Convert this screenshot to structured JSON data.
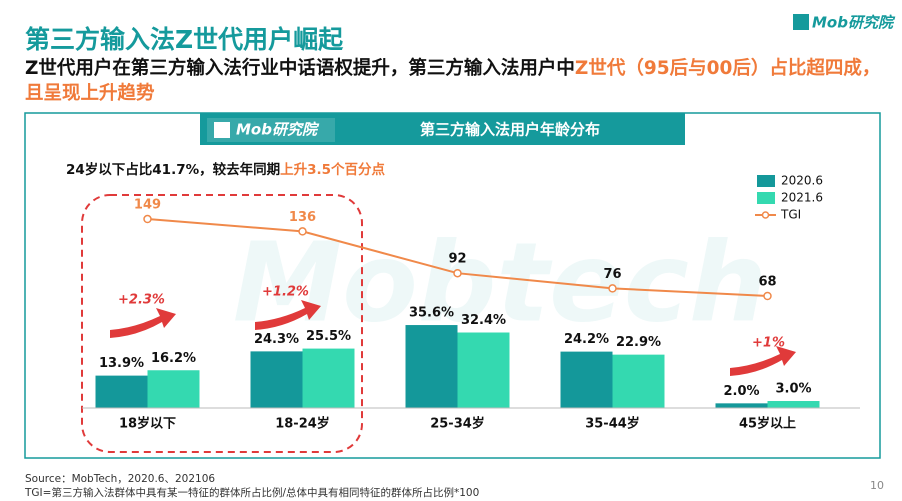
{
  "header": {
    "title": "第三方输入法Z世代用户崛起",
    "subtitle": [
      "Z世代用户在第三方输入法行业中话语权提升，第三方输入法用户中",
      "Z世代（95后与00后）占比超四成，且呈现上升趋势"
    ],
    "logo": "Mob研究院"
  },
  "chart_data": {
    "type": "bar",
    "title": "第三方输入法用户年龄分布",
    "logo": "Mob研究院",
    "watermark": "Mobtech",
    "annotation": [
      "24岁以下占比41.7%，较去年同期",
      "上升3.5个百分点"
    ],
    "callouts": [
      "+2.3%",
      "+1.2%",
      "+1%"
    ],
    "categories": [
      "18岁以下",
      "18-24岁",
      "25-34岁",
      "35-44岁",
      "45岁以上"
    ],
    "series": [
      {
        "name": "2020.6",
        "color": "#14989a",
        "values": [
          13.9,
          24.3,
          35.6,
          24.2,
          2.0
        ],
        "value_labels": [
          "13.9%",
          "24.3%",
          "35.6%",
          "24.2%",
          "2.0%"
        ]
      },
      {
        "name": "2021.6",
        "color": "#34d9b0",
        "values": [
          16.2,
          25.5,
          32.4,
          22.9,
          3.0
        ],
        "value_labels": [
          "16.2%",
          "25.5%",
          "32.4%",
          "22.9%",
          "3.0%"
        ]
      },
      {
        "name": "TGI",
        "type": "line",
        "axis": "y2",
        "color": "#f0894a",
        "values": [
          149,
          136,
          92,
          76,
          68
        ]
      }
    ],
    "highlight_color": "#e03a3a"
  },
  "footer": {
    "source": "Source：MobTech，2020.6、202106",
    "note": "TGI=第三方输入法群体中具有某一特征的群体所占比例/总体中具有相同特征的群体所占比例*100",
    "page": 10
  }
}
